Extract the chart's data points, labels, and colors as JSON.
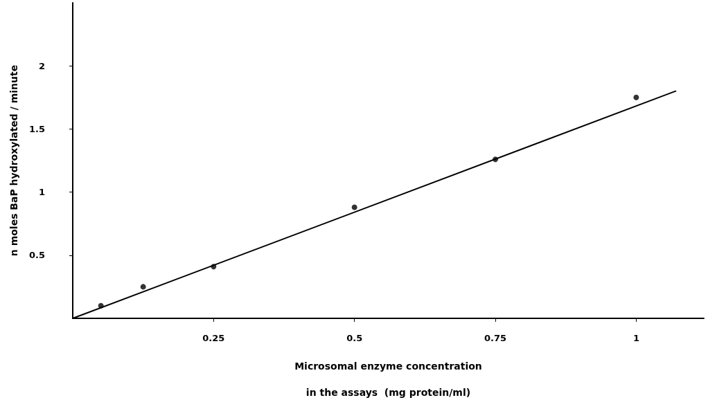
{
  "chart_data": {
    "type": "scatter",
    "xlabel": "Microsomal enzyme concentration\nin the assays  (mg protein/ml)",
    "ylabel": "n moles BaP hydroxylated / minute",
    "xlim": [
      0,
      1.12
    ],
    "xticks": [
      0.25,
      0.5,
      0.75,
      1
    ],
    "ylim": [
      0,
      2.5
    ],
    "yticks": [
      0.5,
      1,
      1.5,
      2
    ],
    "grid": false,
    "marker": "circle",
    "series": [
      {
        "type": "scatter",
        "color": "#000000",
        "x": [
          0.05,
          0.125,
          0.25,
          0.5,
          0.75,
          1
        ],
        "values": [
          0.1,
          0.25,
          0.41,
          0.88,
          1.26,
          1.75
        ]
      },
      {
        "type": "line",
        "color": "#000000",
        "x": [
          0,
          1.07
        ],
        "values": [
          0,
          1.8
        ],
        "marker": "none",
        "line_style": "solid"
      }
    ]
  }
}
